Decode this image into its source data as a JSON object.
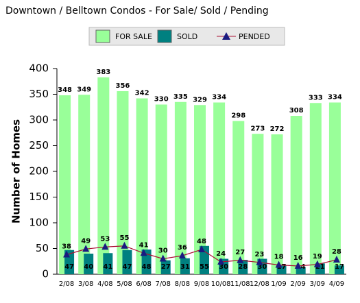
{
  "chart_data": {
    "type": "bar",
    "title": "Downtown / Belltown Condos - For Sale/ Sold / Pending",
    "y_label": "Number of Homes",
    "categories": [
      "2/08",
      "3/08",
      "4/08",
      "5/08",
      "6/08",
      "7/08",
      "8/08",
      "9/08",
      "10/08",
      "11/08",
      "12/08",
      "1/09",
      "2/09",
      "3/09",
      "4/09"
    ],
    "series": [
      {
        "name": "FOR SALE",
        "type": "bar",
        "color": "#99ff99",
        "values": [
          348,
          349,
          383,
          356,
          342,
          330,
          335,
          329,
          334,
          298,
          273,
          272,
          308,
          333,
          334
        ]
      },
      {
        "name": "SOLD",
        "type": "bar",
        "color": "#008080",
        "values": [
          47,
          40,
          41,
          47,
          48,
          27,
          31,
          55,
          30,
          28,
          30,
          17,
          14,
          21,
          17
        ]
      },
      {
        "name": "PENDED",
        "type": "line",
        "color": "#aa1133",
        "marker_color": "#1a1a80",
        "values": [
          38,
          49,
          53,
          55,
          41,
          30,
          36,
          48,
          24,
          27,
          23,
          18,
          16,
          19,
          28
        ]
      }
    ],
    "ylim": [
      0,
      400
    ],
    "yticks": [
      0,
      50,
      100,
      150,
      200,
      250,
      300,
      350,
      400
    ],
    "grid": false
  }
}
